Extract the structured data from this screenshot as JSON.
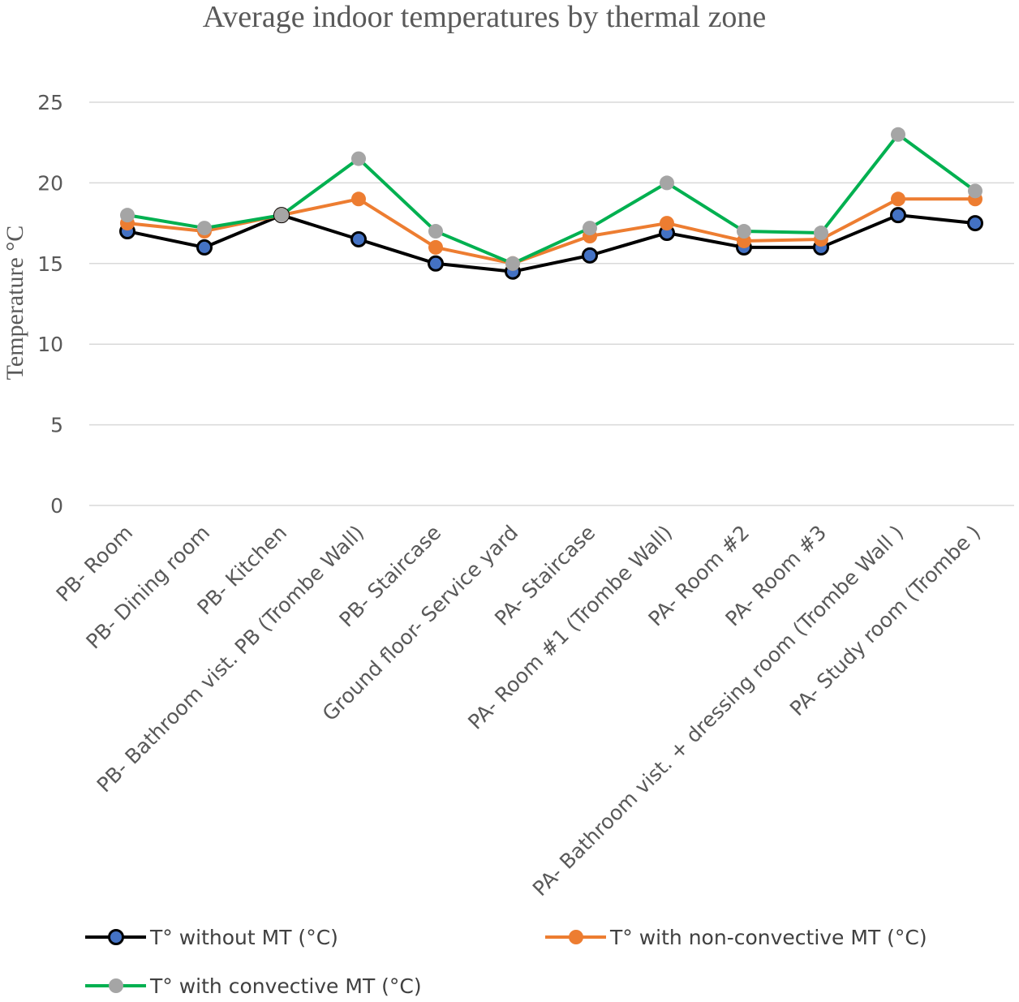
{
  "chart_data": {
    "type": "line",
    "title": "Average indoor temperatures by thermal zone",
    "xlabel": "",
    "ylabel": "Temperature °C",
    "ylim": [
      0,
      25
    ],
    "yticks": [
      0,
      5,
      10,
      15,
      20,
      25
    ],
    "grid": true,
    "legend_position": "bottom",
    "categories": [
      "PB- Room",
      "PB- Dining room",
      "PB- Kitchen",
      "PB- Bathroom vist. PB (Trombe Wall)",
      "PB- Staircase",
      "Ground floor- Service yard",
      "PA- Staircase",
      "PA- Room #1 (Trombe Wall)",
      "PA- Room #2",
      "PA- Room #3",
      "PA- Bathroom vist. + dressing room (Trombe Wall )",
      "PA- Study room (Trombe )"
    ],
    "series": [
      {
        "name": "T° without MT (°C)",
        "line_color": "#000000",
        "marker_color": "#4472c4",
        "values": [
          17,
          16,
          18,
          16.5,
          15,
          14.5,
          15.5,
          16.9,
          16,
          16,
          18,
          17.5
        ]
      },
      {
        "name": "T° with non-convective MT (°C)",
        "line_color": "#ed7d31",
        "marker_color": "#ed7d31",
        "values": [
          17.5,
          17,
          18,
          19,
          16,
          15,
          16.7,
          17.5,
          16.4,
          16.5,
          19,
          19
        ]
      },
      {
        "name": "T° with convective MT (°C)",
        "line_color": "#00b050",
        "marker_color": "#a5a5a5",
        "values": [
          18,
          17.2,
          18,
          21.5,
          17,
          15,
          17.2,
          20,
          17,
          16.9,
          23,
          19.5
        ]
      }
    ]
  }
}
